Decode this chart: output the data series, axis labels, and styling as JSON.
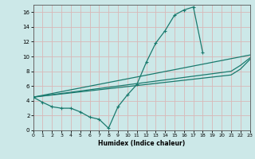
{
  "xlabel": "Humidex (Indice chaleur)",
  "xlim": [
    0,
    23
  ],
  "ylim": [
    0,
    17
  ],
  "xticks": [
    0,
    1,
    2,
    3,
    4,
    5,
    6,
    7,
    8,
    9,
    10,
    11,
    12,
    13,
    14,
    15,
    16,
    17,
    18,
    19,
    20,
    21,
    22,
    23
  ],
  "yticks": [
    0,
    2,
    4,
    6,
    8,
    10,
    12,
    14,
    16
  ],
  "bg_color": "#cce8e8",
  "grid_color": "#d9b8b8",
  "line_color": "#1a7a6e",
  "main_x": [
    0,
    1,
    2,
    3,
    4,
    5,
    6,
    7,
    8,
    9,
    10,
    11,
    12,
    13,
    14,
    15,
    16,
    17,
    18
  ],
  "main_y": [
    4.5,
    3.8,
    3.2,
    3.0,
    3.0,
    2.5,
    1.8,
    1.5,
    0.3,
    3.2,
    4.8,
    6.2,
    9.2,
    11.8,
    13.5,
    15.6,
    16.3,
    16.7,
    10.5
  ],
  "trend1_x": [
    0,
    23
  ],
  "trend1_y": [
    4.5,
    10.2
  ],
  "trend2_x": [
    0,
    21,
    22,
    23
  ],
  "trend2_y": [
    4.5,
    8.0,
    8.8,
    9.8
  ],
  "trend3_x": [
    0,
    21,
    22,
    23
  ],
  "trend3_y": [
    4.5,
    7.5,
    8.3,
    9.6
  ]
}
